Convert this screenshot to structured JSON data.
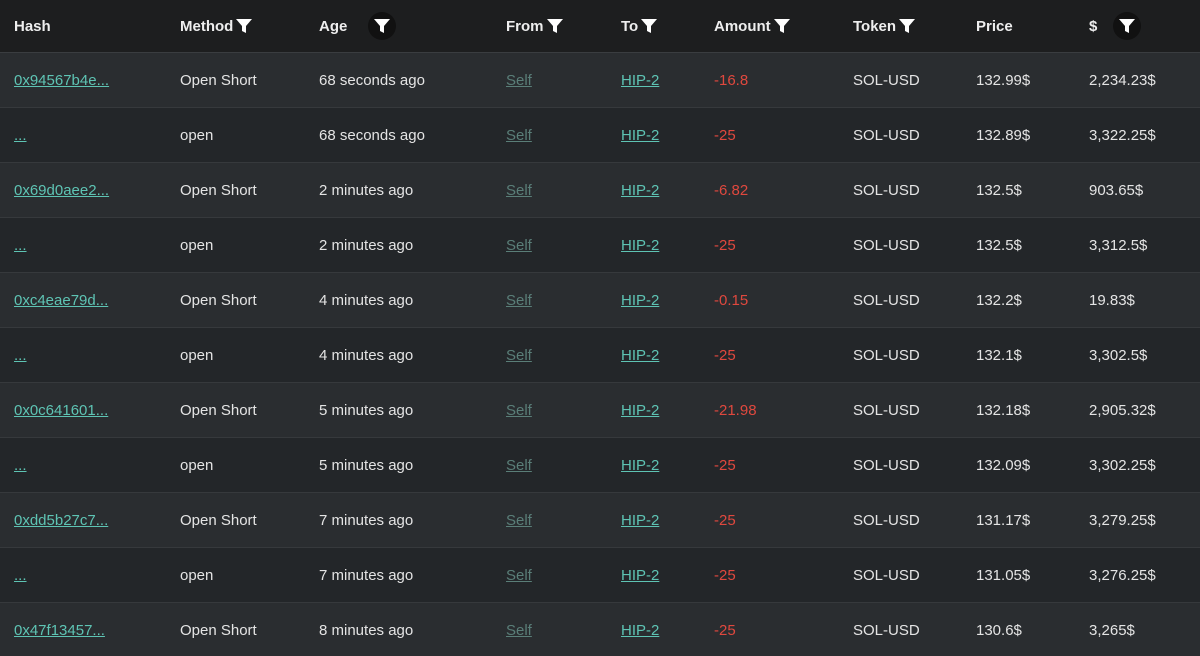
{
  "table": {
    "headers": [
      "Hash",
      "Method",
      "Age",
      "From",
      "To",
      "Amount",
      "Token",
      "Price",
      "$"
    ],
    "rows": [
      [
        "0x94567b4e...",
        "Open Short",
        "68 seconds ago",
        "Self",
        "HIP-2",
        "-16.8",
        "SOL-USD",
        "132.99$",
        "2,234.23$"
      ],
      [
        "...",
        "open",
        "68 seconds ago",
        "Self",
        "HIP-2",
        "-25",
        "SOL-USD",
        "132.89$",
        "3,322.25$"
      ],
      [
        "0x69d0aee2...",
        "Open Short",
        "2 minutes ago",
        "Self",
        "HIP-2",
        "-6.82",
        "SOL-USD",
        "132.5$",
        "903.65$"
      ],
      [
        "...",
        "open",
        "2 minutes ago",
        "Self",
        "HIP-2",
        "-25",
        "SOL-USD",
        "132.5$",
        "3,312.5$"
      ],
      [
        "0xc4eae79d...",
        "Open Short",
        "4 minutes ago",
        "Self",
        "HIP-2",
        "-0.15",
        "SOL-USD",
        "132.2$",
        "19.83$"
      ],
      [
        "...",
        "open",
        "4 minutes ago",
        "Self",
        "HIP-2",
        "-25",
        "SOL-USD",
        "132.1$",
        "3,302.5$"
      ],
      [
        "0x0c641601...",
        "Open Short",
        "5 minutes ago",
        "Self",
        "HIP-2",
        "-21.98",
        "SOL-USD",
        "132.18$",
        "2,905.32$"
      ],
      [
        "...",
        "open",
        "5 minutes ago",
        "Self",
        "HIP-2",
        "-25",
        "SOL-USD",
        "132.09$",
        "3,302.25$"
      ],
      [
        "0xdd5b27c7...",
        "Open Short",
        "7 minutes ago",
        "Self",
        "HIP-2",
        "-25",
        "SOL-USD",
        "131.17$",
        "3,279.25$"
      ],
      [
        "...",
        "open",
        "7 minutes ago",
        "Self",
        "HIP-2",
        "-25",
        "SOL-USD",
        "131.05$",
        "3,276.25$"
      ],
      [
        "0x47f13457...",
        "Open Short",
        "8 minutes ago",
        "Self",
        "HIP-2",
        "-25",
        "SOL-USD",
        "130.6$",
        "3,265$"
      ]
    ]
  }
}
